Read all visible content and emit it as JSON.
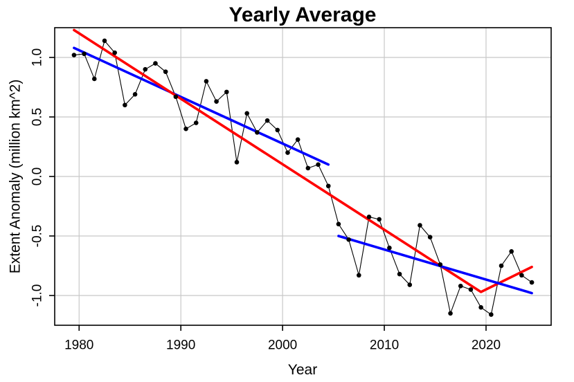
{
  "chart_data": {
    "type": "line",
    "title": "Yearly Average",
    "xlabel": "Year",
    "ylabel": "Extent Anomaly (million km^2)",
    "x": [
      1979,
      1980,
      1981,
      1982,
      1983,
      1984,
      1985,
      1986,
      1987,
      1988,
      1989,
      1990,
      1991,
      1992,
      1993,
      1994,
      1995,
      1996,
      1997,
      1998,
      1999,
      2000,
      2001,
      2002,
      2003,
      2004,
      2005,
      2006,
      2007,
      2008,
      2009,
      2010,
      2011,
      2012,
      2013,
      2014,
      2015,
      2016,
      2017,
      2018,
      2019,
      2020,
      2021,
      2022,
      2023,
      2024
    ],
    "series": [
      {
        "name": "yearly-extent-anomaly",
        "color": "#000000",
        "marker": "filled-circle",
        "values": [
          1.02,
          1.03,
          0.82,
          1.14,
          1.04,
          0.6,
          0.69,
          0.9,
          0.95,
          0.88,
          0.67,
          0.4,
          0.45,
          0.8,
          0.63,
          0.71,
          0.12,
          0.53,
          0.37,
          0.47,
          0.39,
          0.2,
          0.31,
          0.07,
          0.1,
          -0.08,
          -0.4,
          -0.53,
          -0.83,
          -0.34,
          -0.36,
          -0.6,
          -0.82,
          -0.91,
          -0.41,
          -0.51,
          -0.74,
          -1.15,
          -0.92,
          -0.95,
          -1.1,
          -1.16,
          -0.75,
          -0.63,
          -0.83,
          -0.89
        ]
      }
    ],
    "trend_lines": [
      {
        "name": "linear-fit-1979-2004",
        "color": "#0000FF",
        "width": 3.6,
        "x": [
          1979,
          2004
        ],
        "y": [
          1.08,
          0.1
        ]
      },
      {
        "name": "piecewise-fit-1979-2024",
        "color": "#FF0000",
        "width": 3.6,
        "x": [
          1979,
          2019,
          2024
        ],
        "y": [
          1.23,
          -0.97,
          -0.76
        ]
      },
      {
        "name": "linear-fit-2005-2024",
        "color": "#0000FF",
        "width": 3.6,
        "x": [
          2005,
          2024
        ],
        "y": [
          -0.5,
          -0.98
        ]
      }
    ],
    "x_axis": {
      "ticks": [
        1980,
        1990,
        2000,
        2010,
        2020
      ],
      "range": [
        1977.6,
        2026.4
      ],
      "point_offset": 0.5
    },
    "y_axis": {
      "tick_labels": [
        "1.0",
        "0.5",
        "0.0",
        "-0.5",
        "-1.0"
      ],
      "tick_values": [
        1.0,
        0.5,
        0.0,
        -0.5,
        -1.0
      ],
      "range": [
        -1.25,
        1.25
      ]
    },
    "grid": true,
    "legend": "none",
    "colors": {
      "grid": "#C8C8C8",
      "axis": "#000000",
      "background": "#FFFFFF"
    }
  }
}
